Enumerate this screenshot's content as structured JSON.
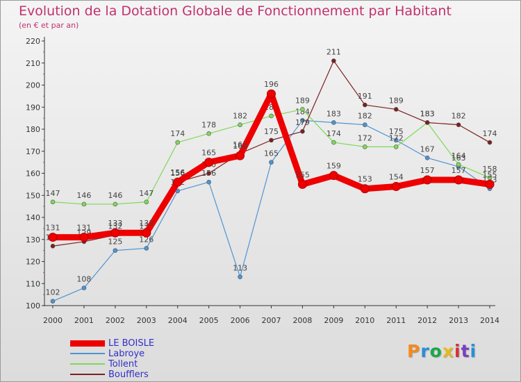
{
  "header": {
    "title": "Evolution de la Dotation Globale de Fonctionnement par Habitant",
    "subtitle": "(en € et par an)"
  },
  "logo": {
    "text": "Proxiti",
    "colors": [
      "#f28a1e",
      "#2a8fd8",
      "#1aa84a",
      "#e8b820",
      "#d83030",
      "#7a3fc0",
      "#2a8fd8"
    ]
  },
  "colors": {
    "title": "#c2306e",
    "axis": "#333333",
    "label": "#444444",
    "legend_text": "#3030c8"
  },
  "chart_data": {
    "type": "line",
    "x": [
      "2000",
      "2001",
      "2002",
      "2003",
      "2004",
      "2005",
      "2006",
      "2007",
      "2008",
      "2009",
      "2010",
      "2011",
      "2012",
      "2013",
      "2014"
    ],
    "ylim": [
      100,
      220
    ],
    "yticks": [
      100,
      110,
      120,
      130,
      140,
      150,
      160,
      170,
      180,
      190,
      200,
      210,
      220
    ],
    "grid": false,
    "legend_position": "bottom-left",
    "series": [
      {
        "name": "Labroye",
        "color": "#4f94d0",
        "width": 1.2,
        "values": [
          102,
          108,
          125,
          126,
          152,
          156,
          113,
          165,
          184,
          183,
          182,
          175,
          167,
          163,
          153
        ]
      },
      {
        "name": "Tollent",
        "color": "#7ed957",
        "width": 1.2,
        "values": [
          147,
          146,
          146,
          147,
          174,
          178,
          182,
          186,
          189,
          174,
          172,
          172,
          183,
          164,
          158
        ]
      },
      {
        "name": "Boufflers",
        "color": "#7b2020",
        "width": 1.2,
        "values": [
          127,
          129,
          132,
          132,
          156,
          160,
          169,
          175,
          179,
          211,
          191,
          189,
          183,
          182,
          174
        ]
      },
      {
        "name": "LE BOISLE",
        "color": "#ee0000",
        "width": 9,
        "values": [
          131,
          131,
          133,
          133,
          156,
          165,
          168,
          196,
          155,
          159,
          153,
          154,
          157,
          157,
          155
        ]
      }
    ]
  }
}
